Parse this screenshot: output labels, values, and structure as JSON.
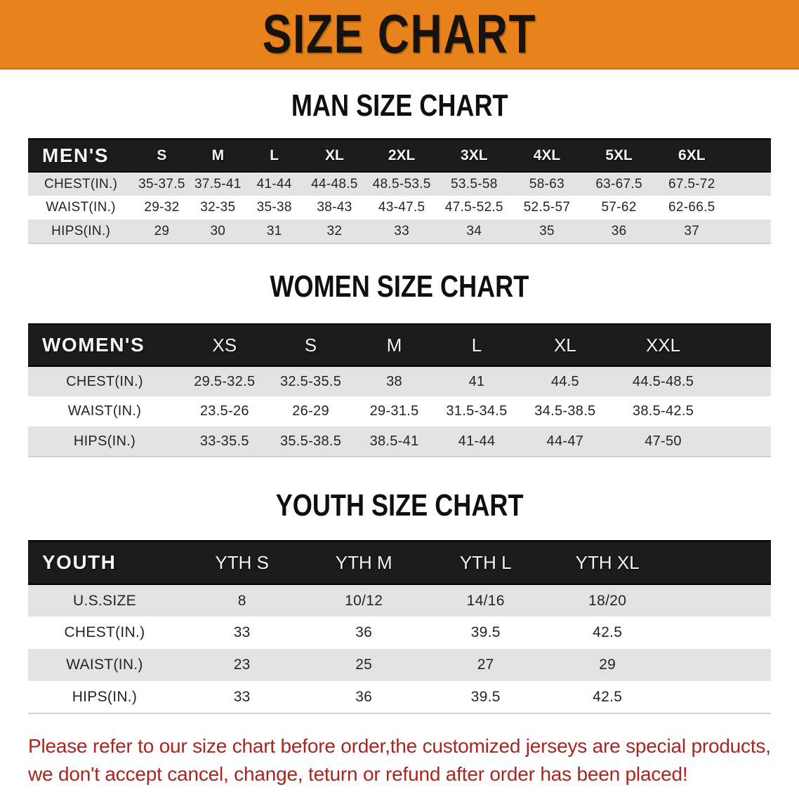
{
  "banner": {
    "title": "SIZE CHART"
  },
  "colors": {
    "banner_bg": "#E8821B",
    "header_bar": "#1B1B1B",
    "row_shade": "#E3E3E3",
    "notice_text": "#A8261F"
  },
  "sections": [
    {
      "heading": "MAN SIZE CHART",
      "table": {
        "header": [
          "MEN'S",
          "S",
          "M",
          "L",
          "XL",
          "2XL",
          "3XL",
          "4XL",
          "5XL",
          "6XL",
          ""
        ],
        "rows": [
          [
            "CHEST(IN.)",
            "35-37.5",
            "37.5-41",
            "41-44",
            "44-48.5",
            "48.5-53.5",
            "53.5-58",
            "58-63",
            "63-67.5",
            "67.5-72",
            ""
          ],
          [
            "WAIST(IN.)",
            "29-32",
            "32-35",
            "35-38",
            "38-43",
            "43-47.5",
            "47.5-52.5",
            "52.5-57",
            "57-62",
            "62-66.5",
            ""
          ],
          [
            "HIPS(IN.)",
            "29",
            "30",
            "31",
            "32",
            "33",
            "34",
            "35",
            "36",
            "37",
            ""
          ]
        ]
      }
    },
    {
      "heading": "WOMEN SIZE CHART",
      "table": {
        "header": [
          "WOMEN'S",
          "XS",
          "S",
          "M",
          "L",
          "XL",
          "XXL",
          ""
        ],
        "rows": [
          [
            "CHEST(IN.)",
            "29.5-32.5",
            "32.5-35.5",
            "38",
            "41",
            "44.5",
            "44.5-48.5",
            ""
          ],
          [
            "WAIST(IN.)",
            "23.5-26",
            "26-29",
            "29-31.5",
            "31.5-34.5",
            "34.5-38.5",
            "38.5-42.5",
            ""
          ],
          [
            "HIPS(IN.)",
            "33-35.5",
            "35.5-38.5",
            "38.5-41",
            "41-44",
            "44-47",
            "47-50",
            ""
          ]
        ]
      }
    },
    {
      "heading": "YOUTH SIZE CHART",
      "table": {
        "header": [
          "YOUTH",
          "YTH S",
          "YTH M",
          "YTH L",
          "YTH XL",
          ""
        ],
        "rows": [
          [
            "U.S.SIZE",
            "8",
            "10/12",
            "14/16",
            "18/20",
            ""
          ],
          [
            "CHEST(IN.)",
            "33",
            "36",
            "39.5",
            "42.5",
            ""
          ],
          [
            "WAIST(IN.)",
            "23",
            "25",
            "27",
            "29",
            ""
          ],
          [
            "HIPS(IN.)",
            "33",
            "36",
            "39.5",
            "42.5",
            ""
          ]
        ]
      }
    }
  ],
  "footer": {
    "line1": "Please refer to our size chart before order,the customized jerseys are special products,",
    "line2": "we don't accept cancel, change, teturn or refund after order has been placed!"
  }
}
